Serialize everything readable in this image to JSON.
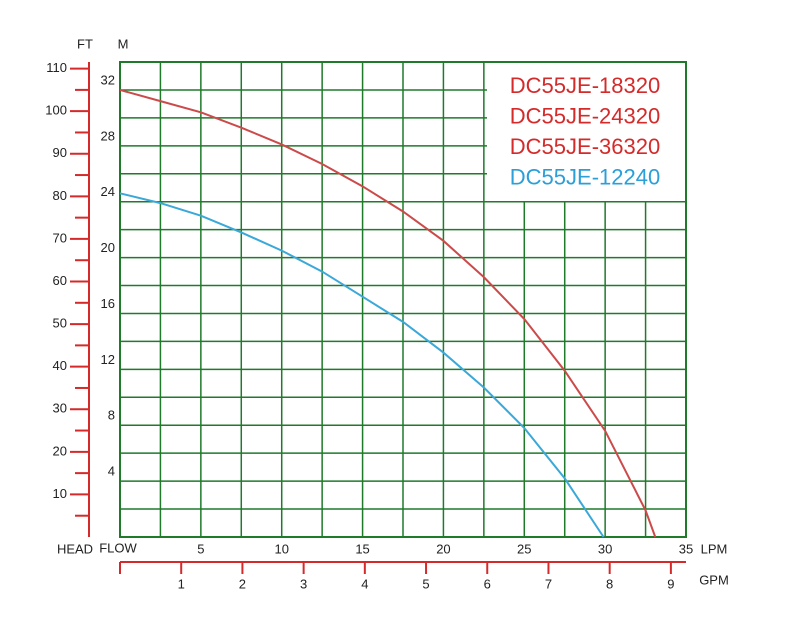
{
  "chart_data": {
    "type": "line",
    "labels": {
      "ft": "FT",
      "m": "M",
      "head": "HEAD",
      "flow": "FLOW",
      "lpm": "LPM",
      "gpm": "GPM"
    },
    "xlim": [
      0,
      35
    ],
    "xticks": [
      5,
      10,
      15,
      20,
      25,
      30,
      35
    ],
    "x_grid": [
      2.5,
      5,
      7.5,
      10,
      12.5,
      15,
      17.5,
      20,
      22.5,
      25,
      27.5,
      30,
      32.5
    ],
    "ylim": [
      0,
      34
    ],
    "yticks": [
      4,
      8,
      12,
      16,
      20,
      24,
      28,
      32
    ],
    "y_grid": [
      2,
      4,
      6,
      8,
      10,
      12,
      14,
      16,
      18,
      20,
      22,
      24,
      26,
      28,
      30,
      32
    ],
    "y2lim": [
      0,
      111.55
    ],
    "y2ticks": [
      10,
      20,
      30,
      40,
      50,
      60,
      70,
      80,
      90,
      100,
      110
    ],
    "y2minorticks": [
      5,
      15,
      25,
      35,
      45,
      55,
      65,
      75,
      85,
      95,
      105
    ],
    "x2lim": [
      0,
      9.247
    ],
    "x2ticks": [
      1,
      2,
      3,
      4,
      5,
      6,
      7,
      8,
      9
    ],
    "grid": true,
    "series": [
      {
        "names": [
          "DC55JE-18320",
          "DC55JE-24320",
          "DC55JE-36320"
        ],
        "label_color": "#d42a2a",
        "color": "#cc4a4a",
        "x": [
          0,
          2.5,
          5,
          7.5,
          10,
          12.5,
          15,
          17.5,
          20,
          22.5,
          25,
          27.5,
          30,
          32.5,
          33.1
        ],
        "values": [
          32.0,
          31.2,
          30.4,
          29.3,
          28.1,
          26.7,
          25.1,
          23.3,
          21.2,
          18.6,
          15.6,
          11.9,
          7.6,
          1.9,
          0
        ]
      },
      {
        "names": [
          "DC55JE-12240"
        ],
        "label_color": "#2a9fd8",
        "color": "#3aa8d8",
        "x": [
          0,
          2.5,
          5,
          7.5,
          10,
          12.5,
          15,
          17.5,
          20,
          22.5,
          25,
          27.5,
          29.9
        ],
        "values": [
          24.6,
          23.9,
          23.0,
          21.8,
          20.5,
          19.0,
          17.2,
          15.4,
          13.2,
          10.7,
          7.8,
          4.2,
          0
        ]
      }
    ]
  }
}
